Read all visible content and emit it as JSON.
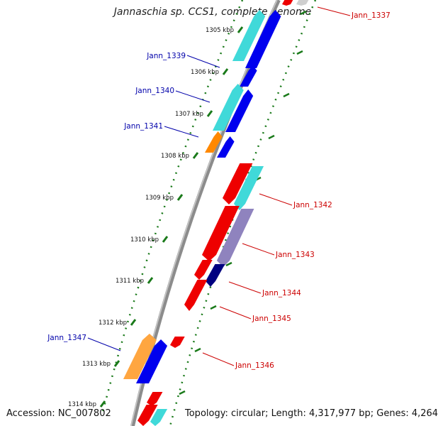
{
  "title": "Jannaschia sp. CCS1, complete genome",
  "accession": "Accession: NC_007802",
  "summary": "Topology: circular; Length: 4,317,977 bp; Genes: 4,264",
  "colors": {
    "backbone": "#8c8c8c",
    "tick": "#1a7a1a",
    "label_forward": "#0000aa",
    "label_reverse": "#cc0000",
    "gene_red": "#ee0000",
    "gene_blue": "#0000ee",
    "gene_cyan": "#00cccc",
    "gene_orange": "#ff8800",
    "gene_navy": "#000080",
    "gene_purple": "#6a5aa8"
  },
  "kbp_labels": [
    "1305 kbp",
    "1306 kbp",
    "1307 kbp",
    "1308 kbp",
    "1309 kbp",
    "1310 kbp",
    "1311 kbp",
    "1312 kbp",
    "1313 kbp",
    "1314 kbp"
  ],
  "gene_labels": {
    "forward": [
      "Jann_1339",
      "Jann_1340",
      "Jann_1341",
      "Jann_1347"
    ],
    "reverse": [
      "Jann_1337",
      "Jann_1342",
      "Jann_1343",
      "Jann_1344",
      "Jann_1345",
      "Jann_1346"
    ]
  }
}
